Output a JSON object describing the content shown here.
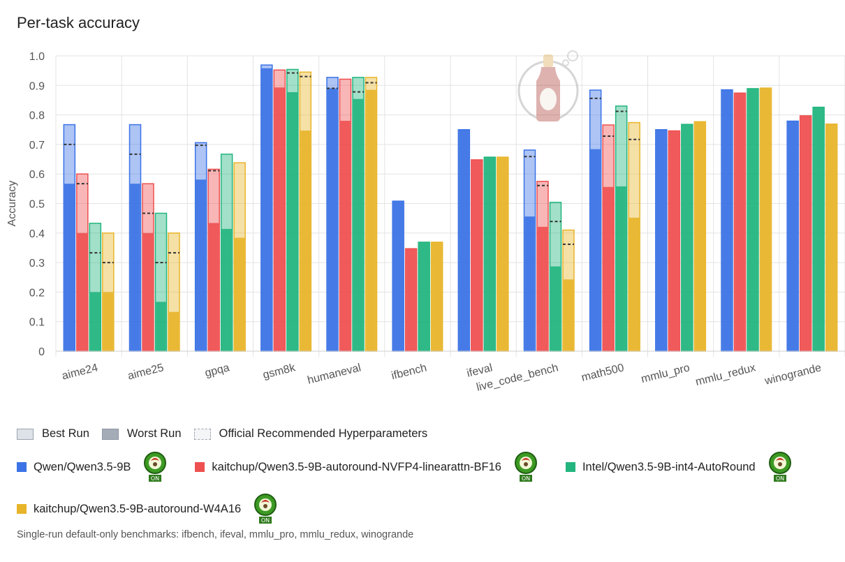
{
  "title": "Per-task accuracy",
  "chart_data": {
    "type": "bar",
    "ylabel": "Accuracy",
    "xlabel": "",
    "ylim": [
      0,
      1.0
    ],
    "yticks": [
      "0",
      "0.1",
      "0.2",
      "0.3",
      "0.4",
      "0.5",
      "0.6",
      "0.7",
      "0.8",
      "0.9",
      "1.0"
    ],
    "categories": [
      "aime24",
      "aime25",
      "gpqa",
      "gsm8k",
      "humaneval",
      "ifbench",
      "ifeval",
      "live_code_bench",
      "math500",
      "mmlu_pro",
      "mmlu_redux",
      "winogrande"
    ],
    "series": [
      {
        "name": "Qwen/Qwen3.5-9B",
        "color": "#3b73e6",
        "best": [
          0.767,
          0.767,
          0.706,
          0.969,
          0.927,
          0.508,
          0.75,
          0.681,
          0.884,
          0.75,
          0.885,
          0.779
        ],
        "worst": [
          0.567,
          0.567,
          0.581,
          0.958,
          0.89,
          0.508,
          0.75,
          0.456,
          0.684,
          0.75,
          0.885,
          0.779
        ],
        "official": [
          0.7,
          0.667,
          0.697,
          null,
          0.89,
          null,
          null,
          0.659,
          0.856,
          null,
          null,
          null
        ]
      },
      {
        "name": "kaitchup/Qwen3.5-9B-autoround-NVFP4-linearattn-BF16",
        "color": "#ee5050",
        "best": [
          0.6,
          0.567,
          0.616,
          0.952,
          0.921,
          0.347,
          0.648,
          0.575,
          0.766,
          0.746,
          0.874,
          0.797
        ],
        "worst": [
          0.4,
          0.4,
          0.434,
          0.893,
          0.78,
          0.347,
          0.648,
          0.421,
          0.556,
          0.746,
          0.874,
          0.797
        ],
        "official": [
          0.567,
          0.467,
          0.611,
          null,
          null,
          null,
          null,
          0.561,
          0.728,
          null,
          null,
          null
        ]
      },
      {
        "name": "Intel/Qwen3.5-9B-int4-AutoRound",
        "color": "#22b57e",
        "best": [
          0.433,
          0.467,
          0.667,
          0.954,
          0.927,
          0.369,
          0.657,
          0.504,
          0.83,
          0.768,
          0.889,
          0.826
        ],
        "worst": [
          0.2,
          0.167,
          0.414,
          0.877,
          0.854,
          0.369,
          0.657,
          0.287,
          0.558,
          0.768,
          0.889,
          0.826
        ],
        "official": [
          0.333,
          0.3,
          null,
          0.942,
          0.878,
          null,
          null,
          0.439,
          0.812,
          null,
          null,
          null
        ]
      },
      {
        "name": "kaitchup/Qwen3.5-9B-autoround-W4A16",
        "color": "#e8b52a",
        "best": [
          0.4,
          0.4,
          0.638,
          0.945,
          0.927,
          0.369,
          0.657,
          0.41,
          0.774,
          0.777,
          0.891,
          0.769
        ],
        "worst": [
          0.2,
          0.133,
          0.384,
          0.747,
          0.885,
          0.369,
          0.657,
          0.243,
          0.452,
          0.777,
          0.891,
          0.769
        ],
        "official": [
          0.3,
          0.333,
          null,
          0.93,
          0.909,
          null,
          null,
          0.362,
          0.717,
          null,
          null,
          null
        ]
      }
    ]
  },
  "legend": {
    "best_label": "Best Run",
    "worst_label": "Worst Run",
    "official_label": "Official Recommended Hyperparameters",
    "badge_text": "ON"
  },
  "footnote": "Single-run default-only benchmarks: ifbench, ifeval, mmlu_pro, mmlu_redux, winogrande"
}
